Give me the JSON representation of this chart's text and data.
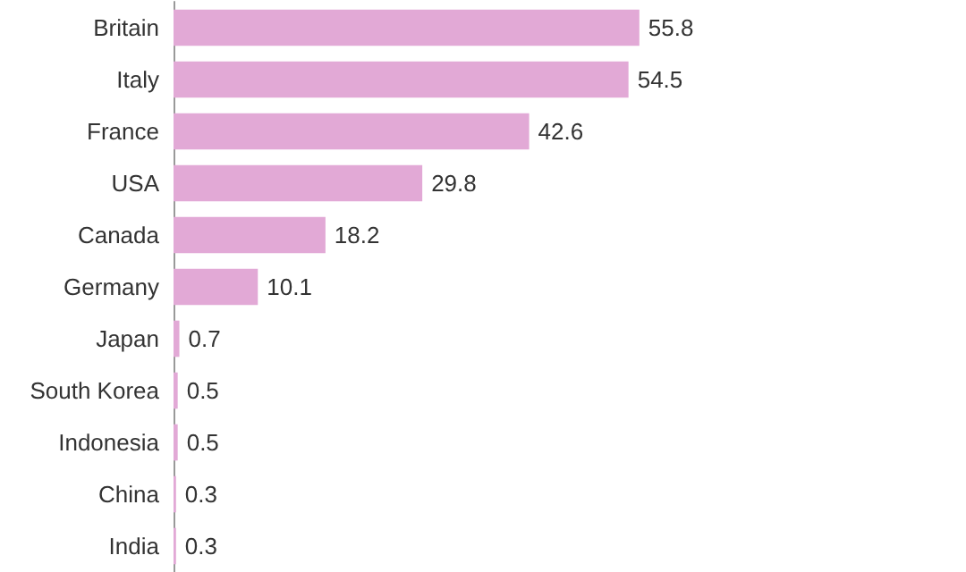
{
  "chart_data": {
    "type": "bar",
    "orientation": "horizontal",
    "categories": [
      "Britain",
      "Italy",
      "France",
      "USA",
      "Canada",
      "Germany",
      "Japan",
      "South Korea",
      "Indonesia",
      "China",
      "India"
    ],
    "values": [
      55.8,
      54.5,
      42.6,
      29.8,
      18.2,
      10.1,
      0.7,
      0.5,
      0.5,
      0.3,
      0.3
    ],
    "color": "#e2a9d6",
    "data_labels": true
  }
}
